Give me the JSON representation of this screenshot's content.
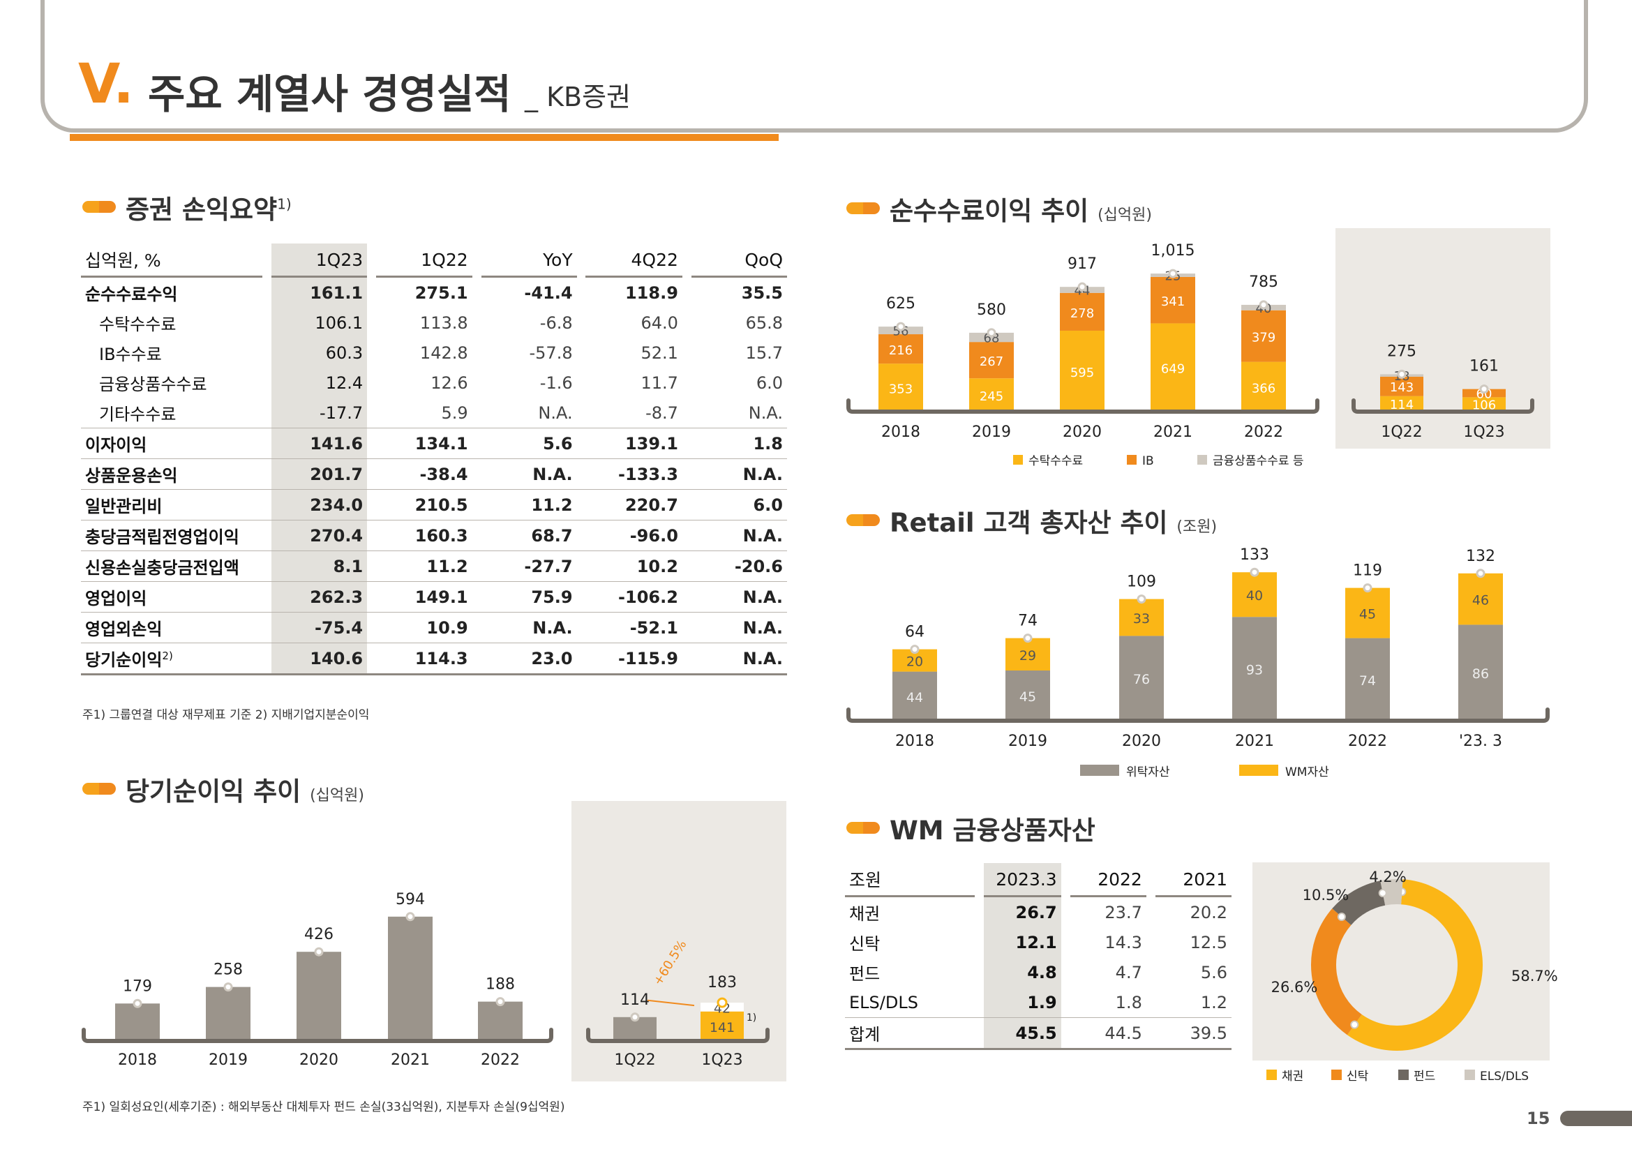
{
  "header": {
    "roman": "V.",
    "title": "주요 계열사 경영실적",
    "subtitle": "_ KB증권"
  },
  "pl_summary": {
    "title": "증권 손익요약",
    "title_sup": "1)",
    "columns": [
      "십억원, %",
      "1Q23",
      "1Q22",
      "YoY",
      "4Q22",
      "QoQ"
    ],
    "rows": [
      {
        "label": "순수수료수익",
        "v": [
          "161.1",
          "275.1",
          "-41.4",
          "118.9",
          "35.5"
        ]
      },
      {
        "label": "수탁수수료",
        "v": [
          "106.1",
          "113.8",
          "-6.8",
          "64.0",
          "65.8"
        ]
      },
      {
        "label": "IB수수료",
        "v": [
          "60.3",
          "142.8",
          "-57.8",
          "52.1",
          "15.7"
        ]
      },
      {
        "label": "금융상품수수료",
        "v": [
          "12.4",
          "12.6",
          "-1.6",
          "11.7",
          "6.0"
        ]
      },
      {
        "label": "기타수수료",
        "v": [
          "-17.7",
          "5.9",
          "N.A.",
          "-8.7",
          "N.A."
        ]
      },
      {
        "label": "이자이익",
        "v": [
          "141.6",
          "134.1",
          "5.6",
          "139.1",
          "1.8"
        ]
      },
      {
        "label": "상품운용손익",
        "v": [
          "201.7",
          "-38.4",
          "N.A.",
          "-133.3",
          "N.A."
        ]
      },
      {
        "label": "일반관리비",
        "v": [
          "234.0",
          "210.5",
          "11.2",
          "220.7",
          "6.0"
        ]
      },
      {
        "label": "충당금적립전영업이익",
        "v": [
          "270.4",
          "160.3",
          "68.7",
          "-96.0",
          "N.A."
        ]
      },
      {
        "label": "신용손실충당금전입액",
        "v": [
          "8.1",
          "11.2",
          "-27.7",
          "10.2",
          "-20.6"
        ]
      },
      {
        "label": "영업이익",
        "v": [
          "262.3",
          "149.1",
          "75.9",
          "-106.2",
          "N.A."
        ]
      },
      {
        "label": "영업외손익",
        "v": [
          "-75.4",
          "10.9",
          "N.A.",
          "-52.1",
          "N.A."
        ]
      },
      {
        "label": "당기순이익",
        "label_sup": "2)",
        "v": [
          "140.6",
          "114.3",
          "23.0",
          "-115.9",
          "N.A."
        ]
      }
    ],
    "note": "주1) 그룹연결 대상 재무제표 기준   2) 지배기업지분순이익"
  },
  "net_income_section": {
    "title": "당기순이익 추이",
    "unit": "(십억원)",
    "note": "주1) 일회성요인(세후기준) : 해외부동산 대체투자 펀드 손실(33십억원), 지분투자 손실(9십억원)"
  },
  "fee_section": {
    "title": "순수수료이익 추이",
    "unit": "(십억원)"
  },
  "retail_section": {
    "title": "Retail 고객 총자산 추이",
    "unit": "(조원)"
  },
  "wm_section": {
    "title": "WM 금융상품자산",
    "columns": [
      "조원",
      "2023.3",
      "2022",
      "2021"
    ],
    "rows": [
      {
        "label": "채권",
        "v": [
          "26.7",
          "23.7",
          "20.2"
        ]
      },
      {
        "label": "신탁",
        "v": [
          "12.1",
          "14.3",
          "12.5"
        ]
      },
      {
        "label": "펀드",
        "v": [
          "4.8",
          "4.7",
          "5.6"
        ]
      },
      {
        "label": "ELS/DLS",
        "v": [
          "1.9",
          "1.8",
          "1.2"
        ]
      },
      {
        "label": "합계",
        "v": [
          "45.5",
          "44.5",
          "39.5"
        ]
      }
    ]
  },
  "page_number": "15",
  "colors": {
    "orange": "#f08a1d",
    "yellow": "#fbb616",
    "gray": "#9b948b",
    "lightgray": "#cfc9c0",
    "darkgray": "#6e6861",
    "beige": "#ece9e4"
  },
  "chart_data": [
    {
      "id": "net_income_annual",
      "type": "bar",
      "categories": [
        "2018",
        "2019",
        "2020",
        "2021",
        "2022"
      ],
      "values": [
        179,
        258,
        426,
        594,
        188
      ]
    },
    {
      "id": "net_income_quarter",
      "type": "bar",
      "categories": [
        "1Q22",
        "1Q23"
      ],
      "series": [
        {
          "values": [
            114,
            141
          ]
        },
        {
          "values": [
            null,
            42
          ]
        }
      ],
      "totals": [
        "114",
        "183"
      ],
      "growth_label": "+60.5%",
      "footnote_mark": "1)"
    },
    {
      "id": "net_fee_annual",
      "type": "bar",
      "categories": [
        "2018",
        "2019",
        "2020",
        "2021",
        "2022"
      ],
      "series": [
        {
          "name": "수탁수수료",
          "values": [
            353,
            245,
            595,
            649,
            366
          ]
        },
        {
          "name": "IB",
          "values": [
            216,
            267,
            278,
            341,
            379
          ]
        },
        {
          "name": "금융상품수수료 등",
          "values": [
            56,
            68,
            44,
            25,
            40
          ]
        }
      ],
      "totals": [
        "625",
        "580",
        "917",
        "1,015",
        "785"
      ],
      "legend": [
        "수탁수수료",
        "IB",
        "금융상품수수료 등"
      ]
    },
    {
      "id": "net_fee_quarter",
      "type": "bar",
      "categories": [
        "1Q22",
        "1Q23"
      ],
      "series": [
        {
          "name": "수탁수수료",
          "values": [
            114,
            106
          ]
        },
        {
          "name": "IB",
          "values": [
            143,
            60
          ]
        },
        {
          "name": "금융상품수수료 등",
          "values": [
            18,
            null
          ]
        }
      ],
      "totals": [
        "275",
        "161"
      ]
    },
    {
      "id": "retail_assets",
      "type": "bar",
      "categories": [
        "2018",
        "2019",
        "2020",
        "2021",
        "2022",
        "'23. 3"
      ],
      "series": [
        {
          "name": "위탁자산",
          "values": [
            44,
            45,
            76,
            93,
            74,
            86
          ]
        },
        {
          "name": "WM자산",
          "values": [
            20,
            29,
            33,
            40,
            45,
            46
          ]
        }
      ],
      "totals": [
        "64",
        "74",
        "109",
        "133",
        "119",
        "132"
      ],
      "legend": [
        "위탁자산",
        "WM자산"
      ]
    },
    {
      "id": "wm_mix",
      "type": "pie",
      "labels": [
        "채권",
        "신탁",
        "펀드",
        "ELS/DLS"
      ],
      "values": [
        58.7,
        26.6,
        10.5,
        4.2
      ],
      "value_labels": [
        "58.7%",
        "26.6%",
        "10.5%",
        "4.2%"
      ],
      "legend": [
        "채권",
        "신탁",
        "펀드",
        "ELS/DLS"
      ]
    }
  ]
}
